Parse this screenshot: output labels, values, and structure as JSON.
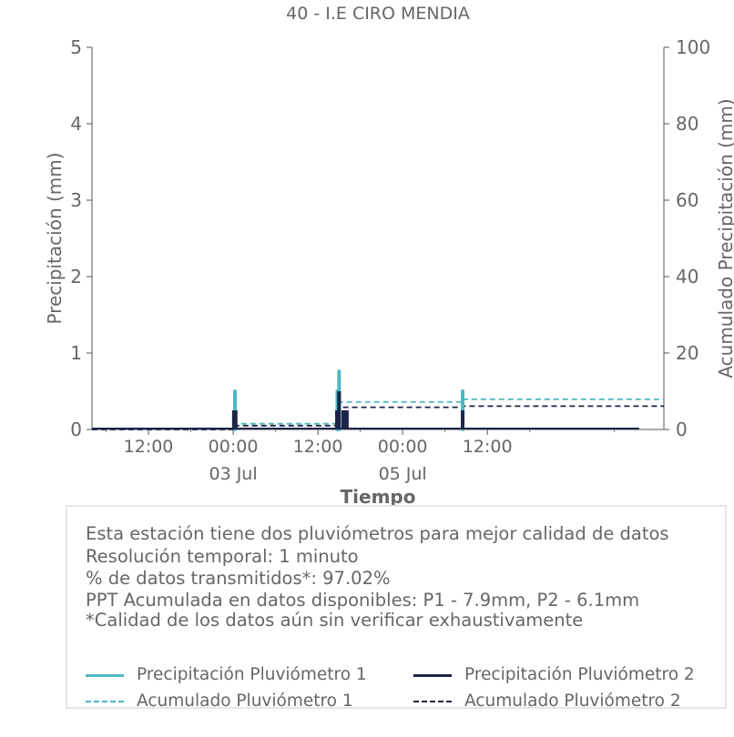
{
  "chart_data": {
    "type": "bar",
    "title": "40 - I.E CIRO MENDIA",
    "xlabel": "Tiempo",
    "ylabel": "Precipitación (mm)",
    "y2label": "Acumulado Precipitación (mm)",
    "ylim": [
      0,
      5
    ],
    "y2lim": [
      0,
      100
    ],
    "yticks": [
      "0",
      "1",
      "2",
      "3",
      "4",
      "5"
    ],
    "y2ticks": [
      "0",
      "20",
      "40",
      "60",
      "80",
      "100"
    ],
    "xlim_hours": [
      -20,
      61
    ],
    "xticks": [
      {
        "hour": -12,
        "label": "12:00",
        "sublabel": ""
      },
      {
        "hour": 0,
        "label": "00:00",
        "sublabel": "03 Jul"
      },
      {
        "hour": 12,
        "label": "12:00",
        "sublabel": ""
      },
      {
        "hour": 24,
        "label": "00:00",
        "sublabel": "05 Jul"
      },
      {
        "hour": 36,
        "label": "12:00",
        "sublabel": ""
      }
    ],
    "grid": false,
    "series": [
      {
        "name": "Precipitación Pluviómetro 1",
        "kind": "bars",
        "color": "#4db8c2",
        "points": [
          [
            0.25,
            0.5
          ],
          [
            14.75,
            0.5
          ],
          [
            15.0,
            0.76
          ],
          [
            32.5,
            0.5
          ]
        ]
      },
      {
        "name": "Precipitación Pluviómetro 2",
        "kind": "bars",
        "color": "#1c2448",
        "points": [
          [
            0.1,
            0.25
          ],
          [
            0.35,
            0.25
          ],
          [
            14.7,
            0.25
          ],
          [
            15.0,
            0.5
          ],
          [
            15.6,
            0.25
          ],
          [
            16.1,
            0.25
          ],
          [
            32.5,
            0.25
          ]
        ]
      },
      {
        "name": "Acumulado Pluviómetro 1",
        "kind": "cumulative",
        "color": "#4db8c2",
        "steps": [
          [
            -20,
            0
          ],
          [
            0.25,
            1.5
          ],
          [
            14.75,
            7.2
          ],
          [
            32.5,
            7.9
          ],
          [
            61,
            7.9
          ]
        ]
      },
      {
        "name": "Acumulado Pluviómetro 2",
        "kind": "cumulative",
        "color": "#1c2448",
        "steps": [
          [
            -20,
            0
          ],
          [
            0.1,
            1.0
          ],
          [
            14.7,
            5.8
          ],
          [
            32.5,
            6.1
          ],
          [
            61,
            6.1
          ]
        ]
      }
    ],
    "legend_position": "bottom"
  },
  "info": {
    "lines": [
      "Esta estación tiene dos pluviómetros para mejor calidad de datos",
      "Resolución temporal: 1 minuto",
      "% de datos transmitidos*: 97.02%",
      "PPT Acumulada en datos disponibles: P1 - 7.9mm, P2 - 6.1mm",
      "*Calidad de los datos aún sin verificar exhaustivamente"
    ]
  },
  "legend": {
    "items": [
      {
        "label": "Precipitación Pluviómetro 1",
        "color": "#4db8c2",
        "style": "solid"
      },
      {
        "label": "Precipitación Pluviómetro 2",
        "color": "#1c2448",
        "style": "solid"
      },
      {
        "label": "Acumulado Pluviómetro 1",
        "color": "#4db8c2",
        "style": "dashed"
      },
      {
        "label": "Acumulado Pluviómetro 2",
        "color": "#1c2448",
        "style": "dashed"
      }
    ]
  }
}
